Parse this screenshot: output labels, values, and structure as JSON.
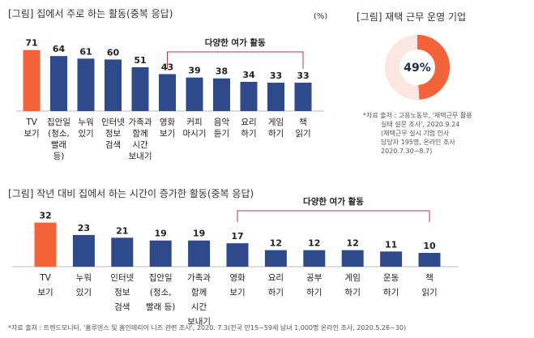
{
  "chart_data": [
    {
      "type": "bar",
      "title": "[그림] 집에서 주로 하는 활동(중복 응답)",
      "unit": "(%)",
      "categories": [
        [
          "TV",
          "보기"
        ],
        [
          "집안일",
          "(청소,",
          "빨래",
          "등)"
        ],
        [
          "누워",
          "있기"
        ],
        [
          "인터넷",
          "정보",
          "검색"
        ],
        [
          "가족과",
          "함께",
          "시간",
          "보내기"
        ],
        [
          "영화",
          "보기"
        ],
        [
          "커피",
          "마시기"
        ],
        [
          "음악",
          "듣기"
        ],
        [
          "요리",
          "하기"
        ],
        [
          "게임",
          "하기"
        ],
        [
          "책",
          "읽기"
        ]
      ],
      "values": [
        71,
        64,
        61,
        60,
        51,
        43,
        39,
        38,
        34,
        33,
        33
      ],
      "highlight_index": 0,
      "bracket": {
        "label": "다양한 여가 활동",
        "from": 5,
        "to": 10
      }
    },
    {
      "type": "pie",
      "title": "[그림] 재택 근무 운영 기업",
      "values": [
        49,
        51
      ],
      "center_label": "49%",
      "note": [
        "*자료 출처 : 고용노동부, '재택근무 활용",
        "실태 설문 조사', 2020.9.24",
        "(재택근무 실시 기업 인사",
        "담당자 195명, 온라인 조사",
        "2020.7.30~8.7)"
      ]
    },
    {
      "type": "bar",
      "title": "[그림] 작년 대비 집에서 하는 시간이 증가한 활동(중복 응답)",
      "categories": [
        [
          "TV",
          "보기"
        ],
        [
          "누워",
          "있기"
        ],
        [
          "인터넷",
          "정보",
          "검색"
        ],
        [
          "집안일",
          "(청소,",
          "빨래 등)"
        ],
        [
          "가족과",
          "함께",
          "시간",
          "보내기"
        ],
        [
          "영화",
          "보기"
        ],
        [
          "요리",
          "하기"
        ],
        [
          "공부",
          "하기"
        ],
        [
          "게임",
          "하기"
        ],
        [
          "운동",
          "하기"
        ],
        [
          "책",
          "읽기"
        ]
      ],
      "values": [
        32,
        23,
        21,
        19,
        19,
        17,
        12,
        12,
        12,
        11,
        10
      ],
      "highlight_index": 0,
      "bracket": {
        "label": "다양한 여가 활동",
        "from": 5,
        "to": 10
      },
      "note": "*자료 출처 : 트렌드모니터, '홈루덴스 및 홈인테리어 니즈 관련 조사', 2020. 7.3(전국 만15~59세 남녀 1,000명 온라인 조사, 2020.5.26~30)"
    }
  ],
  "colors": {
    "highlight": "#f4623a",
    "bar": "#2e4a8b",
    "bracket": "#b5394a",
    "donut_bg": "#fbe6e0",
    "axis": "#bbbbbb"
  }
}
